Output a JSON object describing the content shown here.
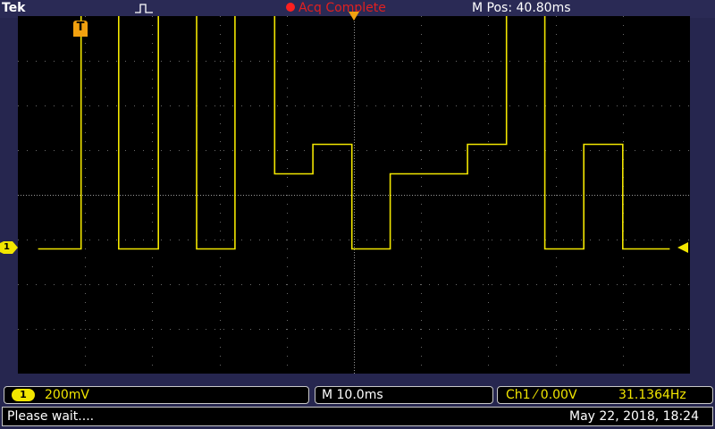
{
  "header": {
    "brand": "Tek",
    "trigger_state_icon": "pulse-trigger-icon",
    "acq_status": "Acq Complete",
    "acq_status_color": "#e02020",
    "m_pos": "M Pos: 40.80ms"
  },
  "markers": {
    "trigger_label": "T",
    "channel_label": "1"
  },
  "bottom": {
    "ch1_badge": "1",
    "ch1_scale": "200mV",
    "time_scale": "M 10.0ms",
    "trigger_source": "Ch1 ⁄ 0.00V",
    "trigger_freq": "31.1364Hz"
  },
  "status": {
    "message": "Please wait....",
    "datetime": "May 22, 2018, 18:24"
  },
  "colors": {
    "trace": "#f2e600",
    "background": "#26264f",
    "trigger": "#f2a10f"
  },
  "chart_data": {
    "type": "line",
    "title": "",
    "xlabel": "",
    "ylabel": "",
    "x_unit": "ms",
    "y_unit": "V",
    "xlim": [
      -50,
      50
    ],
    "ylim": [
      -0.8,
      0.8
    ],
    "grid": true,
    "series": [
      {
        "points": [
          [
            -47,
            -0.242
          ],
          [
            -40.6,
            -0.242
          ],
          [
            -40.6,
            0.804
          ],
          [
            -35,
            0.804
          ],
          [
            -35,
            -0.242
          ],
          [
            -29.1,
            -0.242
          ],
          [
            -29.1,
            0.804
          ],
          [
            -23.4,
            0.804
          ],
          [
            -23.4,
            -0.242
          ],
          [
            -17.7,
            -0.242
          ],
          [
            -17.7,
            0.804
          ],
          [
            -11.8,
            0.804
          ],
          [
            -11.8,
            0.094
          ],
          [
            -6.1,
            0.094
          ],
          [
            -6.1,
            0.226
          ],
          [
            -0.3,
            0.226
          ],
          [
            -0.3,
            -0.242
          ],
          [
            5.4,
            -0.242
          ],
          [
            5.4,
            0.094
          ],
          [
            16.9,
            0.094
          ],
          [
            16.9,
            0.226
          ],
          [
            22.7,
            0.226
          ],
          [
            22.7,
            0.804
          ],
          [
            28.4,
            0.804
          ],
          [
            28.4,
            -0.242
          ],
          [
            34.2,
            -0.242
          ],
          [
            34.2,
            0.226
          ],
          [
            40.0,
            0.226
          ],
          [
            40.0,
            -0.242
          ],
          [
            47.0,
            -0.242
          ]
        ]
      }
    ]
  }
}
